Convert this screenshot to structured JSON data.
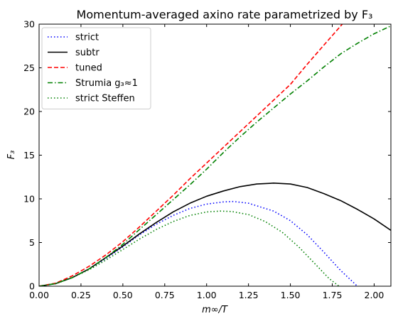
{
  "chart_data": {
    "type": "line",
    "title": "Momentum-averaged axino rate parametrized by F₃",
    "xlabel": "m∞/T",
    "ylabel": "F₃",
    "xlim": [
      0,
      2.1
    ],
    "ylim": [
      0,
      30
    ],
    "xticks": [
      0,
      0.25,
      0.5,
      0.75,
      1.0,
      1.25,
      1.5,
      1.75,
      2.0
    ],
    "xtick_labels": [
      "0.00",
      "0.25",
      "0.50",
      "0.75",
      "1.00",
      "1.25",
      "1.50",
      "1.75",
      "2.00"
    ],
    "yticks": [
      0,
      5,
      10,
      15,
      20,
      25,
      30
    ],
    "ytick_labels": [
      "0",
      "5",
      "10",
      "15",
      "20",
      "25",
      "30"
    ],
    "grid": false,
    "legend_position": "top-left",
    "series": [
      {
        "name": "strict",
        "color": "#0000ff",
        "style": "dotted",
        "x": [
          0,
          0.1,
          0.2,
          0.3,
          0.4,
          0.5,
          0.6,
          0.7,
          0.8,
          0.9,
          1.0,
          1.1,
          1.16,
          1.25,
          1.4,
          1.5,
          1.6,
          1.7,
          1.8,
          1.9
        ],
        "y": [
          0,
          0.3,
          1.0,
          2.0,
          3.2,
          4.5,
          5.9,
          7.1,
          8.1,
          8.9,
          9.4,
          9.65,
          9.7,
          9.5,
          8.6,
          7.5,
          5.9,
          3.9,
          1.8,
          0
        ]
      },
      {
        "name": "subtr",
        "color": "#000000",
        "style": "solid",
        "x": [
          0,
          0.1,
          0.2,
          0.3,
          0.4,
          0.5,
          0.6,
          0.7,
          0.8,
          0.9,
          1.0,
          1.1,
          1.2,
          1.3,
          1.4,
          1.5,
          1.6,
          1.7,
          1.8,
          1.9,
          2.0,
          2.1
        ],
        "y": [
          0,
          0.3,
          1.0,
          2.0,
          3.3,
          4.6,
          6.0,
          7.3,
          8.5,
          9.5,
          10.3,
          10.9,
          11.4,
          11.7,
          11.8,
          11.7,
          11.3,
          10.6,
          9.8,
          8.8,
          7.7,
          6.4
        ]
      },
      {
        "name": "tuned",
        "color": "#ff0000",
        "style": "dashed",
        "x": [
          0,
          0.1,
          0.2,
          0.3,
          0.4,
          0.5,
          0.6,
          0.7,
          0.8,
          0.9,
          1.0,
          1.1,
          1.2,
          1.3,
          1.4,
          1.5,
          1.6,
          1.7,
          1.81
        ],
        "y": [
          0,
          0.35,
          1.2,
          2.3,
          3.6,
          5.1,
          6.8,
          8.6,
          10.4,
          12.3,
          14.1,
          15.9,
          17.7,
          19.5,
          21.3,
          23.1,
          25.4,
          27.6,
          30
        ]
      },
      {
        "name": "Strumia g₃≈1",
        "color": "#008000",
        "style": "dashdot",
        "x": [
          0,
          0.1,
          0.2,
          0.3,
          0.4,
          0.5,
          0.6,
          0.7,
          0.8,
          0.9,
          1.0,
          1.1,
          1.2,
          1.3,
          1.4,
          1.5,
          1.6,
          1.7,
          1.8,
          1.9,
          2.0,
          2.1
        ],
        "y": [
          0,
          0.3,
          1.0,
          2.0,
          3.3,
          4.8,
          6.5,
          8.2,
          9.9,
          11.6,
          13.4,
          15.3,
          17.1,
          18.8,
          20.4,
          22.0,
          23.5,
          25.1,
          26.6,
          27.8,
          28.9,
          29.8
        ]
      },
      {
        "name": "strict Steffen",
        "color": "#008000",
        "style": "dotted",
        "x": [
          0,
          0.1,
          0.2,
          0.3,
          0.4,
          0.5,
          0.6,
          0.7,
          0.8,
          0.9,
          1.0,
          1.08,
          1.15,
          1.25,
          1.35,
          1.45,
          1.55,
          1.65,
          1.73,
          1.79
        ],
        "y": [
          0,
          0.3,
          1.0,
          1.9,
          3.0,
          4.2,
          5.4,
          6.5,
          7.4,
          8.1,
          8.5,
          8.6,
          8.55,
          8.2,
          7.4,
          6.2,
          4.5,
          2.5,
          0.9,
          0
        ]
      }
    ]
  }
}
